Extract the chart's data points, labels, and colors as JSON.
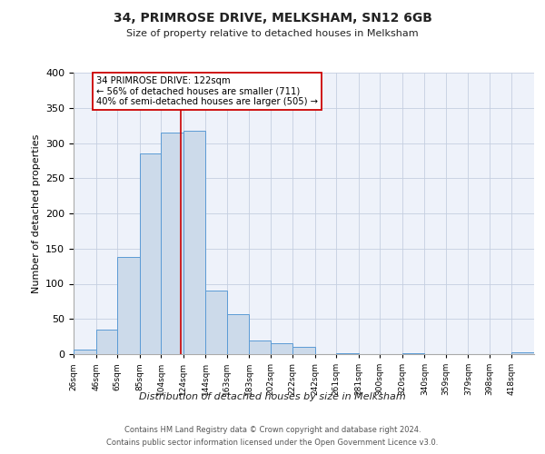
{
  "title": "34, PRIMROSE DRIVE, MELKSHAM, SN12 6GB",
  "subtitle": "Size of property relative to detached houses in Melksham",
  "xlabel": "Distribution of detached houses by size in Melksham",
  "ylabel": "Number of detached properties",
  "footnote1": "Contains HM Land Registry data © Crown copyright and database right 2024.",
  "footnote2": "Contains public sector information licensed under the Open Government Licence v3.0.",
  "bin_labels": [
    "26sqm",
    "46sqm",
    "65sqm",
    "85sqm",
    "104sqm",
    "124sqm",
    "144sqm",
    "163sqm",
    "183sqm",
    "202sqm",
    "222sqm",
    "242sqm",
    "261sqm",
    "281sqm",
    "300sqm",
    "320sqm",
    "340sqm",
    "359sqm",
    "379sqm",
    "398sqm",
    "418sqm"
  ],
  "bar_heights": [
    7,
    35,
    138,
    285,
    315,
    318,
    90,
    57,
    20,
    15,
    10,
    0,
    1,
    0,
    0,
    1,
    0,
    0,
    0,
    0,
    3
  ],
  "bar_color": "#ccdaea",
  "bar_edge_color": "#5b9bd5",
  "ylim": [
    0,
    400
  ],
  "yticks": [
    0,
    50,
    100,
    150,
    200,
    250,
    300,
    350,
    400
  ],
  "bin_edges": [
    26,
    46,
    65,
    85,
    104,
    124,
    144,
    163,
    183,
    202,
    222,
    242,
    261,
    281,
    300,
    320,
    340,
    359,
    379,
    398,
    418,
    438
  ],
  "property_line_x": 122,
  "property_line_color": "#cc0000",
  "annotation_title": "34 PRIMROSE DRIVE: 122sqm",
  "annotation_line1": "← 56% of detached houses are smaller (711)",
  "annotation_line2": "40% of semi-detached houses are larger (505) →",
  "annotation_box_color": "#ffffff",
  "annotation_box_edge": "#cc0000",
  "background_color": "#eef2fa",
  "grid_color": "#c5cfe0",
  "fig_background": "#ffffff"
}
